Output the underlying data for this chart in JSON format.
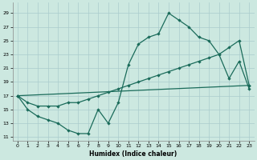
{
  "xlabel": "Humidex (Indice chaleur)",
  "bg_color": "#cce8e0",
  "grid_color": "#aacccc",
  "line_color": "#1a6b5a",
  "xlim": [
    -0.5,
    23.5
  ],
  "ylim": [
    10.5,
    30.5
  ],
  "xticks": [
    0,
    1,
    2,
    3,
    4,
    5,
    6,
    7,
    8,
    9,
    10,
    11,
    12,
    13,
    14,
    15,
    16,
    17,
    18,
    19,
    20,
    21,
    22,
    23
  ],
  "yticks": [
    11,
    13,
    15,
    17,
    19,
    21,
    23,
    25,
    27,
    29
  ],
  "line1_x": [
    0,
    1,
    2,
    3,
    4,
    5,
    6,
    7,
    8,
    9,
    10,
    11,
    12,
    13,
    14,
    15,
    16,
    17,
    18,
    19,
    20,
    21,
    22,
    23
  ],
  "line1_y": [
    17,
    15,
    14,
    13.5,
    13,
    12,
    11.5,
    11.5,
    15,
    13,
    16,
    21.5,
    24.5,
    25.5,
    26,
    29,
    28,
    27,
    25.5,
    25,
    23,
    19.5,
    22,
    18
  ],
  "line2_x": [
    0,
    1,
    2,
    3,
    4,
    5,
    6,
    7,
    8,
    9,
    10,
    11,
    12,
    13,
    14,
    15,
    16,
    17,
    18,
    19,
    20,
    21,
    22,
    23
  ],
  "line2_y": [
    17,
    16,
    15.5,
    15.5,
    15.5,
    16,
    16,
    16.5,
    17,
    17.5,
    18,
    18.5,
    19,
    19.5,
    20,
    20.5,
    21,
    21.5,
    22,
    22.5,
    23,
    24,
    25,
    18.5
  ],
  "line3_x": [
    0,
    23
  ],
  "line3_y": [
    17,
    18.5
  ]
}
